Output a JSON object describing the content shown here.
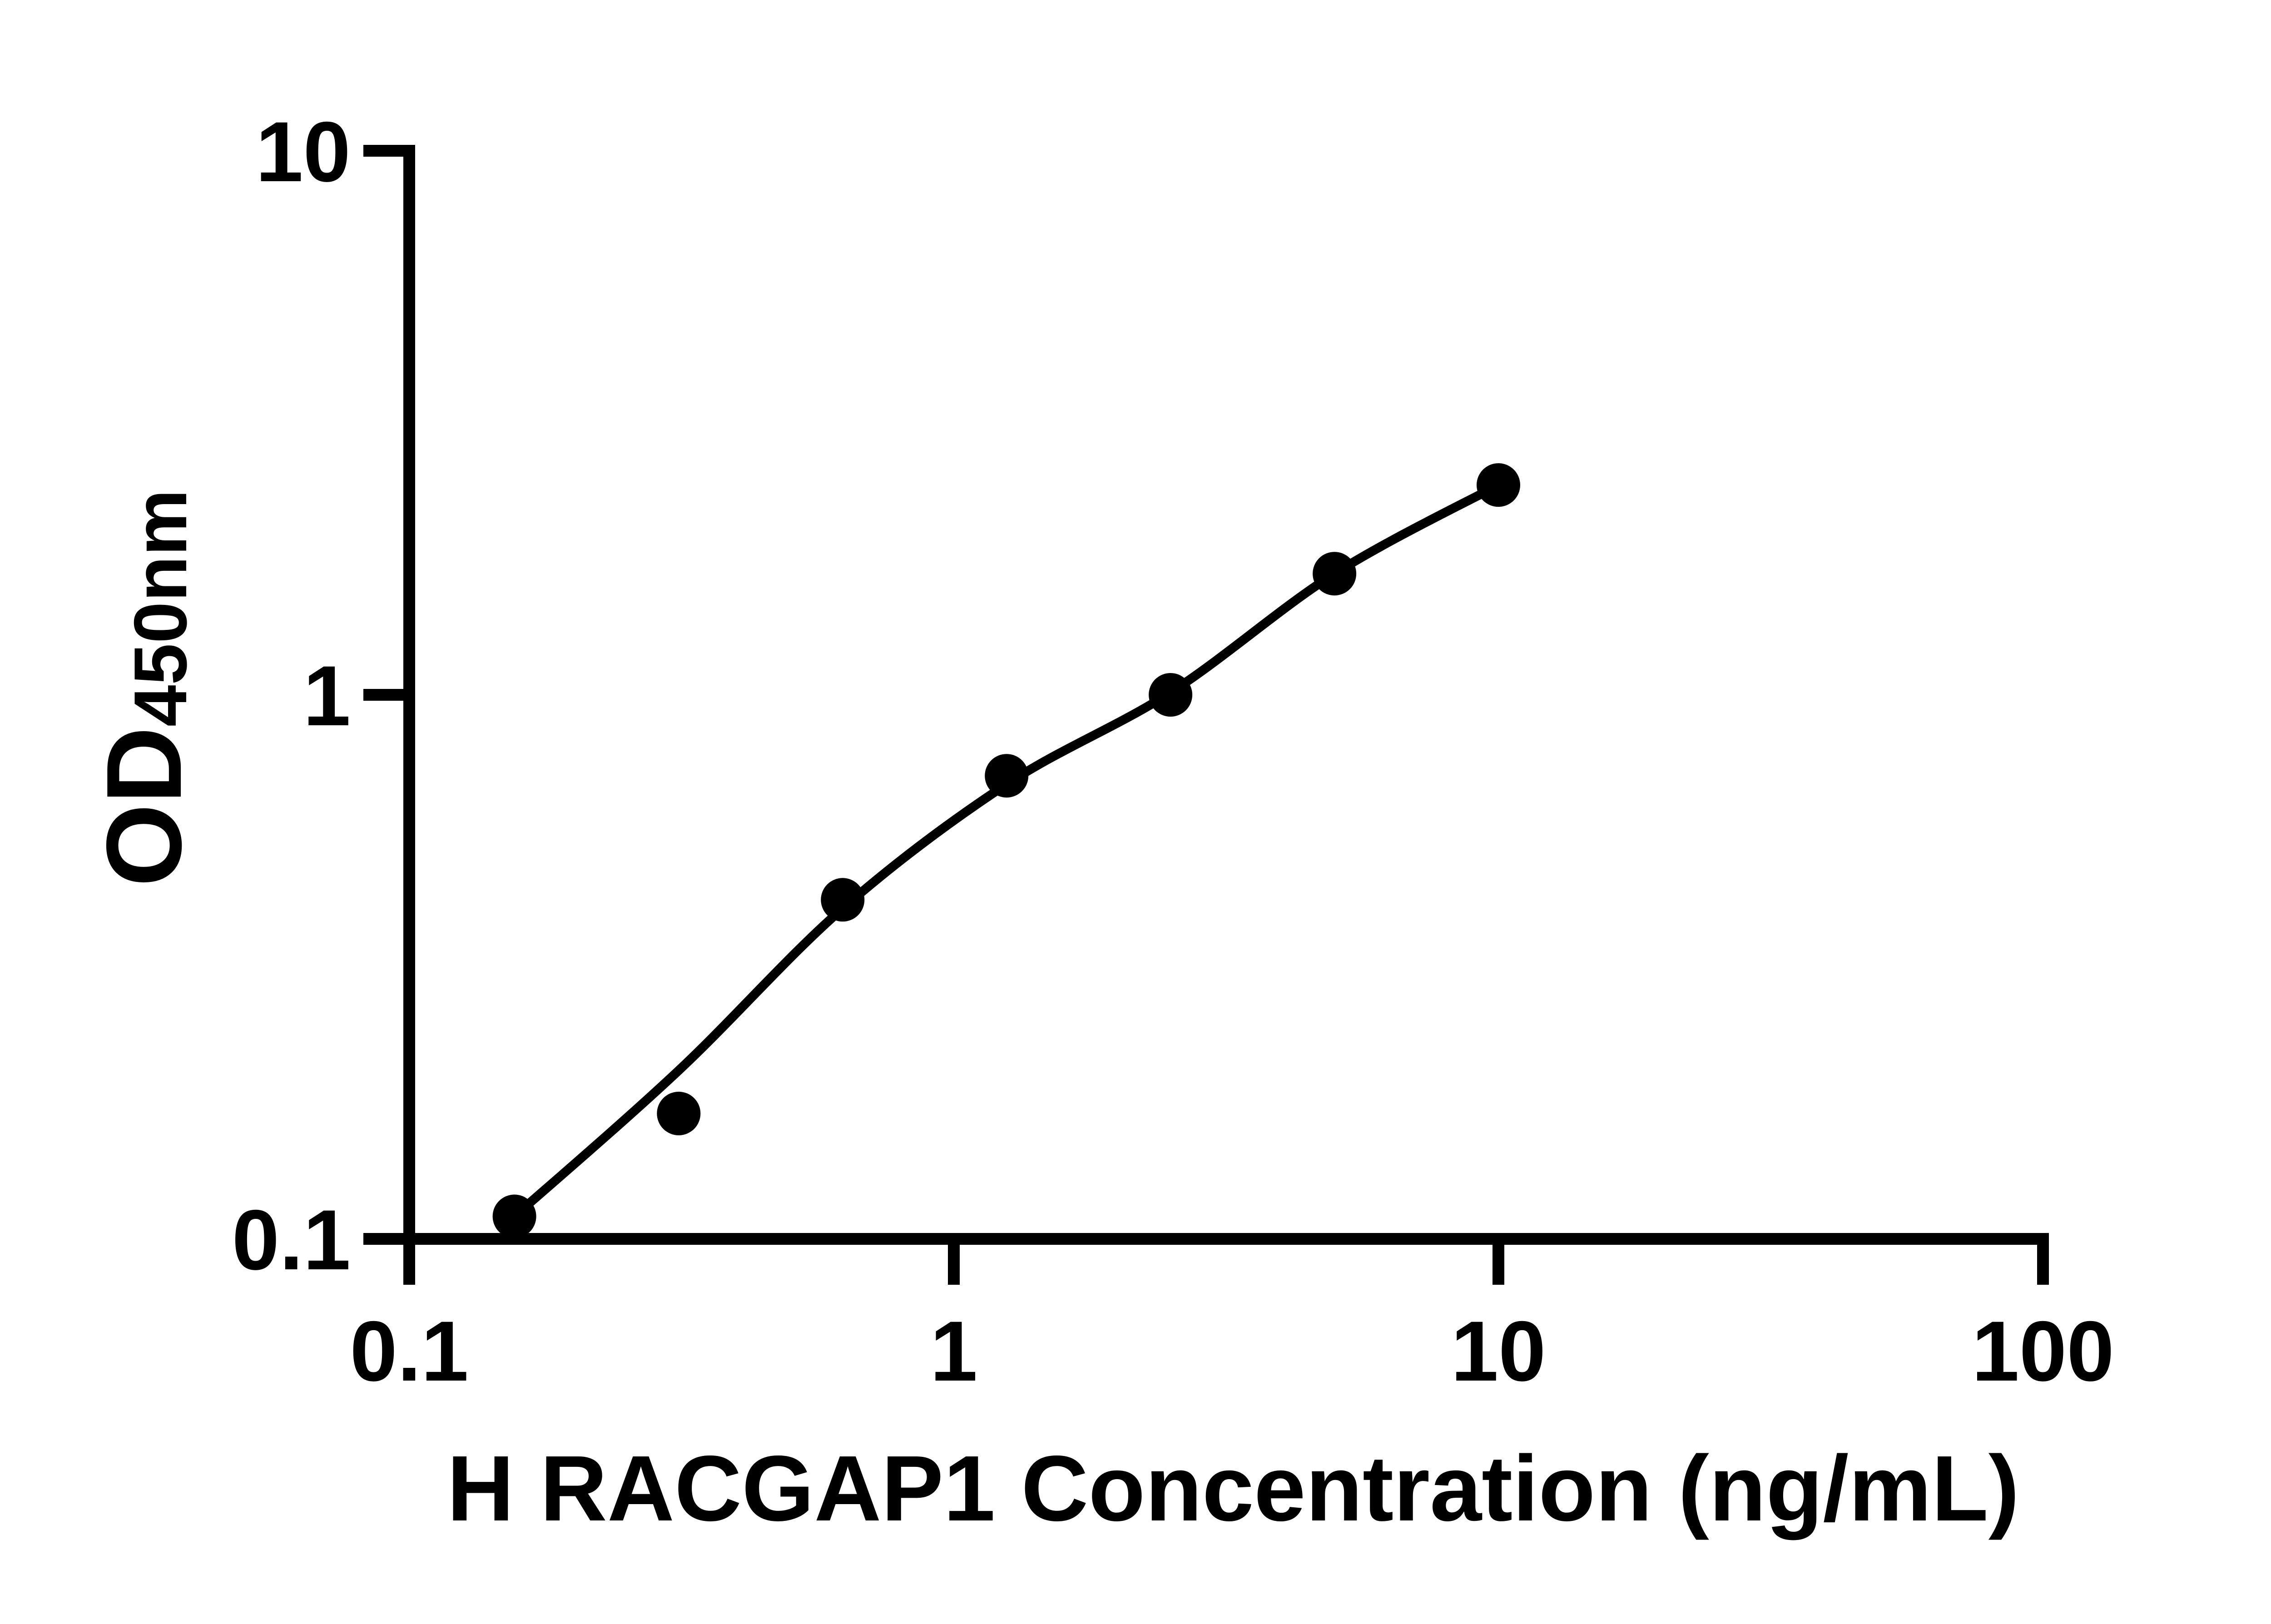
{
  "figure": {
    "background_color": "#ffffff",
    "foreground_color": "#000000"
  },
  "chart_data": {
    "type": "scatter",
    "title": "",
    "xlabel": "H RACGAP1 Concentration (ng/mL)",
    "ylabel_main": "OD",
    "ylabel_sub": "450nm",
    "x_scale": "log10",
    "y_scale": "log10",
    "xlim": [
      0.1,
      100
    ],
    "ylim": [
      0.1,
      10
    ],
    "x_ticks": [
      0.1,
      1,
      10,
      100
    ],
    "x_tick_labels": [
      "0.1",
      "1",
      "10",
      "100"
    ],
    "y_ticks": [
      10,
      1,
      0.1
    ],
    "y_tick_labels": [
      "10",
      "1",
      "0.1"
    ],
    "grid": false,
    "legend": null,
    "marker_color": "#000000",
    "line_color": "#000000",
    "series": [
      {
        "name": "standard-data-points",
        "type": "scatter",
        "marker": "filled-circle",
        "x": [
          0.156,
          0.3125,
          0.625,
          1.25,
          2.5,
          5,
          10
        ],
        "y": [
          0.11,
          0.17,
          0.42,
          0.71,
          1.0,
          1.67,
          2.43
        ]
      },
      {
        "name": "fit-curve",
        "type": "line",
        "x": [
          0.156,
          0.3125,
          0.625,
          1.25,
          2.5,
          5,
          10
        ],
        "y": [
          0.11,
          0.204,
          0.405,
          0.685,
          1.01,
          1.67,
          2.43
        ]
      }
    ]
  }
}
